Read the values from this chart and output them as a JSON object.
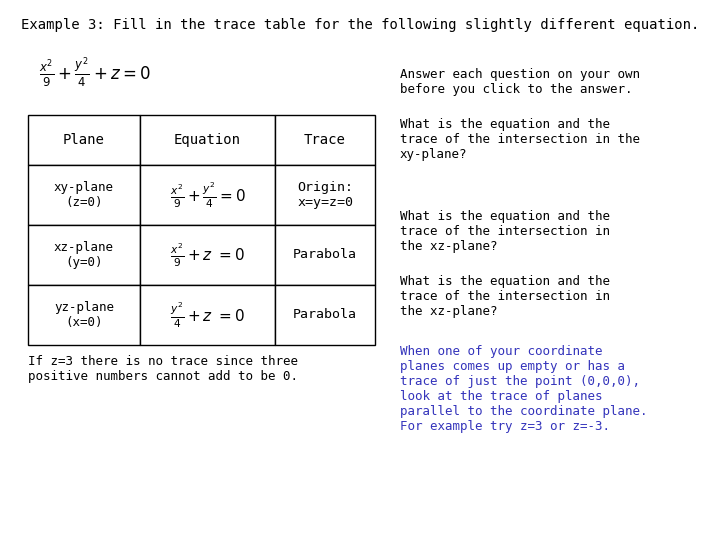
{
  "title": "Example 3: Fill in the trace table for the following slightly different equation.",
  "table_headers": [
    "Plane",
    "Equation",
    "Trace"
  ],
  "table_rows": [
    {
      "plane": "xy-plane\n(z=0)",
      "trace": "Origin:\nx=y=z=0"
    },
    {
      "plane": "xz-plane\n(y=0)",
      "trace": "Parabola"
    },
    {
      "plane": "yz-plane\n(x=0)",
      "trace": "Parabola"
    }
  ],
  "right_text_black": [
    "Answer each question on your own\nbefore you click to the answer.",
    "What is the equation and the\ntrace of the intersection in the\nxy-plane?",
    "What is the equation and the\ntrace of the intersection in\nthe xz-plane?",
    "What is the equation and the\ntrace of the intersection in\nthe xz-plane?"
  ],
  "right_text_blue": "When one of your coordinate\nplanes comes up empty or has a\ntrace of just the point (0,0,0),\nlook at the trace of planes\nparallel to the coordinate plane.\nFor example try z=3 or z=-3.",
  "bottom_text": "If z=3 there is no trace since three\npositive numbers cannot add to be 0.",
  "bg_color": "#ffffff",
  "text_color": "#000000",
  "blue_color": "#3333bb"
}
